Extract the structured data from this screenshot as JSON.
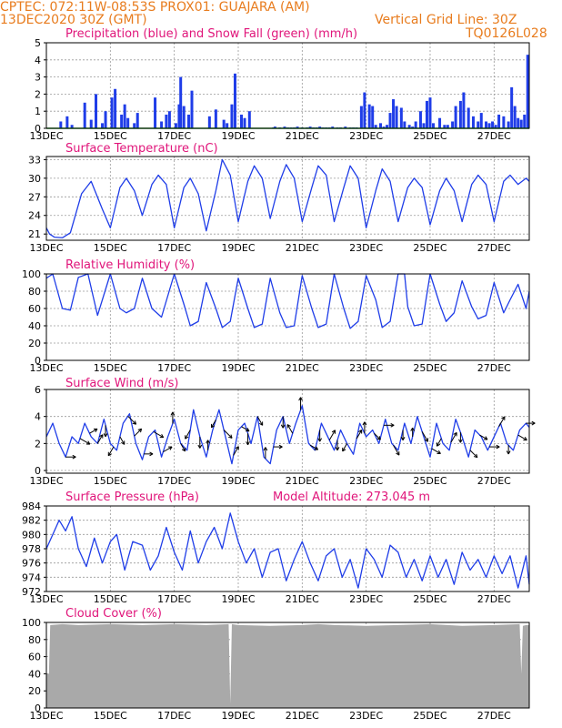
{
  "header": {
    "line1": "CPTEC:   072:11W-08:53S   PROX01: GUAJARA (AM)",
    "line2_left": "13DEC2020 30Z (GMT)",
    "line2_right": "Vertical Grid Line: 30Z",
    "code": "TQ0126L028"
  },
  "colors": {
    "header": "#e87c1e",
    "title": "#e0157a",
    "series": "#1f3de8",
    "snow": "#22a322",
    "cloud": "#a9a9a9",
    "grid": "#9a9a9a"
  },
  "x_axis": {
    "start_day": 13,
    "end_day": 28.1,
    "ticks": [
      13,
      15,
      17,
      19,
      21,
      23,
      25,
      27
    ],
    "tick_labels": [
      "13DEC",
      "15DEC",
      "17DEC",
      "19DEC",
      "21DEC",
      "23DEC",
      "25DEC",
      "27DEC"
    ]
  },
  "chart_data": [
    {
      "id": "precip",
      "type": "bar",
      "title": "Precipitation (blue) and Snow Fall (green) (mm/h)",
      "ylim": [
        0,
        5
      ],
      "yticks": [
        0,
        1,
        2,
        3,
        4,
        5
      ],
      "series": [
        {
          "name": "Precipitation",
          "x": [
            13.45,
            13.65,
            13.8,
            14.2,
            14.4,
            14.55,
            14.75,
            14.85,
            15.05,
            15.15,
            15.35,
            15.45,
            15.55,
            15.75,
            15.85,
            16.4,
            16.6,
            16.75,
            16.85,
            17.05,
            17.15,
            17.2,
            17.3,
            17.45,
            17.55,
            18.1,
            18.3,
            18.55,
            18.65,
            18.8,
            18.9,
            19.1,
            19.2,
            19.35,
            20.1,
            20.15,
            20.3,
            20.45,
            20.55,
            20.65,
            20.75,
            20.85,
            21.0,
            21.15,
            21.25,
            21.35,
            21.45,
            21.55,
            21.65,
            21.75,
            21.85,
            21.95,
            22.1,
            22.2,
            22.35,
            22.5,
            22.6,
            22.7,
            22.85,
            22.95,
            23.1,
            23.2,
            23.3,
            23.45,
            23.55,
            23.65,
            23.75,
            23.85,
            23.95,
            24.1,
            24.2,
            24.35,
            24.45,
            24.55,
            24.7,
            24.8,
            24.9,
            25.0,
            25.1,
            25.3,
            25.45,
            25.55,
            25.7,
            25.8,
            25.95,
            26.05,
            26.2,
            26.35,
            26.5,
            26.6,
            26.75,
            26.85,
            26.95,
            27.05,
            27.15,
            27.3,
            27.45,
            27.55,
            27.65,
            27.75,
            27.85,
            27.95,
            28.05
          ],
          "values": [
            0.4,
            0.7,
            0.2,
            1.5,
            0.5,
            2.0,
            0.3,
            1.0,
            1.8,
            2.3,
            0.8,
            1.4,
            0.6,
            0.3,
            0.9,
            1.8,
            0.4,
            0.8,
            1.0,
            0.3,
            1.4,
            3.0,
            1.3,
            0.8,
            2.2,
            0.7,
            1.1,
            0.5,
            0.3,
            1.4,
            3.2,
            0.8,
            0.6,
            1.0,
            0.05,
            0.1,
            0.05,
            0.1,
            0.05,
            0.05,
            0.05,
            0.1,
            0.05,
            0.05,
            0.1,
            0.05,
            0.05,
            0.1,
            0.05,
            0.05,
            0.05,
            0.1,
            0.05,
            0.05,
            0.1,
            0.05,
            0.05,
            0.05,
            1.3,
            2.1,
            1.4,
            1.3,
            0.2,
            0.3,
            0.1,
            0.2,
            0.9,
            1.7,
            1.3,
            1.2,
            0.4,
            0.2,
            0.1,
            0.4,
            1.0,
            0.3,
            1.6,
            1.8,
            0.3,
            0.6,
            0.2,
            0.2,
            0.4,
            1.3,
            1.6,
            2.1,
            1.2,
            0.7,
            0.4,
            0.9,
            0.4,
            0.3,
            0.4,
            0.2,
            0.8,
            0.7,
            0.4,
            2.4,
            1.3,
            0.6,
            0.5,
            0.8,
            4.3
          ]
        },
        {
          "name": "Snow Fall",
          "x": [
            13,
            28.1
          ],
          "values": [
            0,
            0
          ]
        }
      ]
    },
    {
      "id": "temp",
      "type": "line",
      "title": "Surface Temperature (nC)",
      "ylim": [
        20,
        33.5
      ],
      "yticks": [
        21,
        24,
        27,
        30,
        33
      ],
      "series": [
        {
          "name": "Temperature",
          "x": [
            13.0,
            13.1,
            13.25,
            13.5,
            13.75,
            14.1,
            14.4,
            14.75,
            15.0,
            15.3,
            15.5,
            15.75,
            16.0,
            16.3,
            16.5,
            16.75,
            17.0,
            17.3,
            17.5,
            17.75,
            18.0,
            18.3,
            18.5,
            18.75,
            19.0,
            19.3,
            19.5,
            19.75,
            20.0,
            20.3,
            20.5,
            20.75,
            21.0,
            21.3,
            21.5,
            21.75,
            22.0,
            22.3,
            22.5,
            22.75,
            23.0,
            23.3,
            23.5,
            23.75,
            24.0,
            24.3,
            24.5,
            24.75,
            25.0,
            25.3,
            25.5,
            25.75,
            26.0,
            26.3,
            26.5,
            26.75,
            27.0,
            27.3,
            27.5,
            27.75,
            28.0,
            28.1
          ],
          "values": [
            22.0,
            21.0,
            20.5,
            20.4,
            21.2,
            27.5,
            29.5,
            25.0,
            22.0,
            28.5,
            30.0,
            28.0,
            24.0,
            29.0,
            30.5,
            29.0,
            22.0,
            28.5,
            30.0,
            27.5,
            21.5,
            28.0,
            33.0,
            30.5,
            23.0,
            29.5,
            32.0,
            30.0,
            23.5,
            29.5,
            32.2,
            30.0,
            23.0,
            28.5,
            32.0,
            30.5,
            23.0,
            28.5,
            32.0,
            30.0,
            22.0,
            28.0,
            31.5,
            29.5,
            23.0,
            28.5,
            30.0,
            28.5,
            22.5,
            28.0,
            30.0,
            28.0,
            23.0,
            29.0,
            30.5,
            29.0,
            23.0,
            29.5,
            30.5,
            29.0,
            30.0,
            29.5
          ]
        }
      ]
    },
    {
      "id": "rh",
      "type": "line",
      "title": "Relative Humidity (%)",
      "ylim": [
        0,
        100
      ],
      "yticks": [
        0,
        20,
        40,
        60,
        80,
        100
      ],
      "series": [
        {
          "name": "Relative Humidity",
          "x": [
            13.0,
            13.2,
            13.5,
            13.75,
            14.0,
            14.3,
            14.6,
            15.0,
            15.3,
            15.5,
            15.75,
            16.0,
            16.3,
            16.6,
            17.0,
            17.3,
            17.5,
            17.75,
            18.0,
            18.3,
            18.5,
            18.75,
            19.0,
            19.3,
            19.5,
            19.75,
            20.0,
            20.3,
            20.5,
            20.75,
            21.0,
            21.3,
            21.5,
            21.75,
            22.0,
            22.3,
            22.5,
            22.75,
            23.0,
            23.3,
            23.5,
            23.75,
            24.0,
            24.2,
            24.3,
            24.5,
            24.75,
            25.0,
            25.3,
            25.5,
            25.75,
            26.0,
            26.3,
            26.5,
            26.75,
            27.0,
            27.3,
            27.5,
            27.75,
            28.0,
            28.1
          ],
          "values": [
            95,
            100,
            60,
            58,
            96,
            100,
            52,
            100,
            60,
            55,
            60,
            95,
            60,
            50,
            100,
            65,
            40,
            45,
            90,
            60,
            38,
            45,
            95,
            60,
            38,
            42,
            95,
            55,
            38,
            40,
            98,
            60,
            38,
            42,
            100,
            60,
            37,
            45,
            98,
            70,
            38,
            45,
            100,
            100,
            62,
            40,
            42,
            100,
            65,
            45,
            55,
            92,
            62,
            48,
            52,
            90,
            55,
            70,
            88,
            60,
            80
          ]
        }
      ]
    },
    {
      "id": "wind",
      "type": "line",
      "title": "Surface Wind (m/s)",
      "ylim": [
        -0.2,
        6
      ],
      "yticks": [
        0,
        2,
        4,
        6
      ],
      "series": [
        {
          "name": "Wind Speed",
          "x": [
            13.0,
            13.2,
            13.4,
            13.6,
            13.8,
            14.0,
            14.2,
            14.4,
            14.6,
            14.8,
            15.0,
            15.2,
            15.4,
            15.6,
            15.8,
            16.0,
            16.2,
            16.4,
            16.6,
            16.8,
            17.0,
            17.2,
            17.4,
            17.6,
            17.8,
            18.0,
            18.2,
            18.4,
            18.6,
            18.8,
            19.0,
            19.2,
            19.4,
            19.6,
            19.8,
            20.0,
            20.2,
            20.4,
            20.6,
            20.8,
            21.0,
            21.2,
            21.4,
            21.6,
            21.8,
            22.0,
            22.2,
            22.4,
            22.6,
            22.8,
            23.0,
            23.2,
            23.4,
            23.6,
            23.8,
            24.0,
            24.2,
            24.4,
            24.6,
            24.8,
            25.0,
            25.2,
            25.4,
            25.6,
            25.8,
            26.0,
            26.2,
            26.4,
            26.6,
            26.8,
            27.0,
            27.2,
            27.4,
            27.6,
            27.8,
            28.0,
            28.1
          ],
          "values": [
            2.5,
            3.5,
            2.0,
            1.0,
            2.5,
            2.0,
            3.5,
            2.5,
            2.0,
            3.8,
            2.0,
            1.5,
            3.5,
            4.2,
            2.0,
            0.8,
            2.5,
            3.0,
            1.0,
            2.5,
            3.8,
            2.0,
            1.5,
            4.5,
            2.5,
            1.0,
            3.0,
            4.5,
            2.5,
            0.5,
            3.0,
            3.5,
            2.0,
            4.0,
            1.0,
            0.5,
            3.0,
            4.0,
            2.0,
            3.5,
            4.8,
            2.0,
            1.5,
            3.5,
            2.5,
            1.5,
            3.0,
            2.0,
            1.2,
            3.5,
            2.5,
            3.0,
            2.0,
            3.8,
            2.0,
            1.5,
            3.5,
            2.0,
            4.0,
            2.5,
            1.0,
            3.5,
            2.0,
            1.5,
            3.8,
            2.5,
            1.0,
            3.0,
            2.5,
            1.5,
            2.5,
            3.5,
            2.0,
            1.5,
            3.0,
            3.5,
            3.2
          ]
        }
      ],
      "vectors": {
        "x": [
          13.6,
          14.05,
          14.35,
          14.6,
          14.85,
          15.1,
          15.3,
          15.55,
          15.75,
          16.05,
          16.35,
          16.65,
          16.95,
          17.2,
          17.5,
          17.8,
          18.05,
          18.3,
          18.55,
          18.85,
          19.1,
          19.3,
          19.6,
          19.85,
          20.1,
          20.4,
          20.7,
          20.95,
          21.25,
          21.55,
          21.85,
          22.1,
          22.4,
          22.7,
          22.95,
          23.25,
          23.55,
          23.85,
          24.15,
          24.45,
          24.75,
          25.05,
          25.35,
          25.65,
          25.95,
          26.25,
          26.55,
          26.85,
          27.15,
          27.45,
          27.75,
          28.0
        ],
        "angles_deg": [
          0,
          30,
          -30,
          -60,
          90,
          120,
          60,
          45,
          -45,
          0,
          30,
          -30,
          -90,
          60,
          120,
          90,
          -90,
          120,
          45,
          -60,
          30,
          90,
          60,
          -90,
          0,
          90,
          -120,
          -90,
          30,
          90,
          -60,
          90,
          120,
          -60,
          -90,
          45,
          0,
          60,
          90,
          -90,
          60,
          30,
          120,
          -60,
          90,
          45,
          30,
          0,
          -60,
          90,
          30,
          0
        ],
        "lengths": [
          0.8,
          0.9,
          0.7,
          0.8,
          0.9,
          0.8,
          0.7,
          0.9,
          0.8,
          0.7,
          0.9,
          0.8,
          0.9,
          0.7,
          0.8,
          0.9,
          0.8,
          0.7,
          0.9,
          0.8,
          0.7,
          0.9,
          0.8,
          0.9,
          0.7,
          0.9,
          0.8,
          1.0,
          0.7,
          0.9,
          0.9,
          0.8,
          0.7,
          0.8,
          0.9,
          0.7,
          0.8,
          0.9,
          0.8,
          0.7,
          0.9,
          0.8,
          0.7,
          0.9,
          0.8,
          0.8,
          0.7,
          0.8,
          0.9,
          0.7,
          0.8,
          0.7
        ]
      }
    },
    {
      "id": "pres",
      "type": "line",
      "title": "Surface Pressure (hPa)",
      "subtitle": "Model Altitude: 273.045  m",
      "ylim": [
        972,
        984
      ],
      "yticks": [
        972,
        974,
        976,
        978,
        980,
        982,
        984
      ],
      "series": [
        {
          "name": "Pressure",
          "x": [
            13.0,
            13.2,
            13.4,
            13.6,
            13.8,
            14.0,
            14.25,
            14.5,
            14.75,
            15.0,
            15.2,
            15.45,
            15.7,
            16.0,
            16.25,
            16.5,
            16.75,
            17.0,
            17.25,
            17.5,
            17.75,
            18.0,
            18.25,
            18.5,
            18.75,
            19.0,
            19.25,
            19.5,
            19.75,
            20.0,
            20.25,
            20.5,
            20.75,
            21.0,
            21.25,
            21.5,
            21.75,
            22.0,
            22.25,
            22.5,
            22.75,
            23.0,
            23.25,
            23.5,
            23.75,
            24.0,
            24.25,
            24.5,
            24.75,
            25.0,
            25.25,
            25.5,
            25.75,
            26.0,
            26.25,
            26.5,
            26.75,
            27.0,
            27.25,
            27.5,
            27.75,
            28.0,
            28.1
          ],
          "values": [
            978.0,
            980.0,
            982.0,
            980.5,
            982.5,
            978.0,
            975.5,
            979.5,
            976.0,
            979.0,
            980.0,
            975.0,
            979.0,
            978.5,
            975.0,
            977.0,
            981.0,
            977.5,
            975.0,
            980.5,
            976.0,
            979.0,
            981.0,
            978.0,
            983.0,
            979.0,
            976.0,
            978.0,
            974.0,
            977.5,
            978.0,
            973.5,
            976.5,
            979.0,
            976.0,
            973.5,
            977.0,
            978.0,
            974.0,
            976.5,
            972.5,
            978.0,
            976.5,
            974.0,
            978.5,
            977.5,
            974.0,
            976.5,
            973.5,
            977.0,
            974.0,
            976.5,
            973.0,
            977.5,
            975.0,
            976.5,
            974.0,
            977.0,
            974.5,
            977.0,
            972.5,
            977.0,
            973.0
          ]
        }
      ]
    },
    {
      "id": "cloud",
      "type": "area",
      "title": "Cloud Cover (%)",
      "ylim": [
        0,
        100
      ],
      "yticks": [
        0,
        20,
        40,
        60,
        80,
        100
      ],
      "series": [
        {
          "name": "Cloud Cover",
          "x": [
            13.0,
            13.08,
            13.12,
            13.5,
            14.0,
            15.0,
            16.0,
            17.0,
            18.0,
            18.7,
            18.75,
            18.8,
            19.0,
            20.0,
            21.0,
            21.5,
            22.0,
            23.0,
            24.0,
            25.0,
            26.0,
            27.0,
            27.8,
            27.85,
            27.9,
            28.0,
            28.1
          ],
          "values": [
            40,
            40,
            97,
            98,
            97,
            98,
            97,
            98,
            97,
            98,
            5,
            98,
            97,
            96,
            97,
            98,
            97,
            96,
            97,
            98,
            96,
            97,
            98,
            40,
            96,
            97,
            97
          ]
        }
      ]
    }
  ]
}
